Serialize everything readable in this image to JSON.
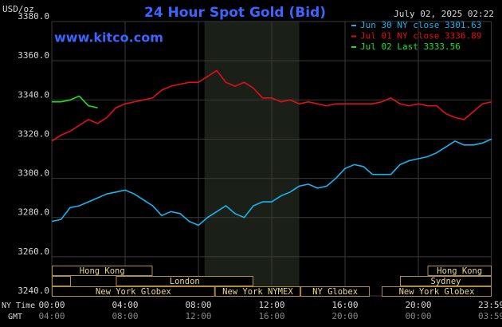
{
  "chart_data": {
    "type": "line",
    "title": "24 Hour Spot Gold (Bid)",
    "timestamp": "July 02, 2025 02:22",
    "source": "www.kitco.com",
    "y_label": "USD/oz",
    "x_label": "NY Time",
    "x2_label": "GMT",
    "x": [
      0,
      0.5,
      1,
      1.5,
      2,
      2.5,
      3,
      3.5,
      4,
      4.5,
      5,
      5.5,
      6,
      6.5,
      7,
      7.5,
      8,
      8.5,
      9,
      9.5,
      10,
      10.5,
      11,
      11.5,
      12,
      12.5,
      13,
      13.5,
      14,
      14.5,
      15,
      15.5,
      16,
      16.5,
      17,
      17.5,
      18,
      18.5,
      19,
      19.5,
      20,
      20.5,
      21,
      21.5,
      22,
      22.5,
      23,
      23.5,
      24
    ],
    "series": [
      {
        "name": "Jun 30 NY close 3301.63",
        "color": "#18b4f0",
        "values": [
          3278,
          3279,
          3285,
          3286,
          3288,
          3290,
          3292,
          3293,
          3294,
          3292,
          3289,
          3286,
          3281,
          3283,
          3282,
          3278,
          3276,
          3280,
          3283,
          3286,
          3282,
          3280,
          3286,
          3288,
          3288,
          3291,
          3293,
          3296,
          3297,
          3295,
          3296,
          3300,
          3305,
          3307,
          3306,
          3302,
          3302,
          3302,
          3307,
          3309,
          3310,
          3311,
          3313,
          3316,
          3319,
          3317,
          3317,
          3318,
          3320
        ]
      },
      {
        "name": "Jul 01 NY close 3336.89",
        "color": "#e01018",
        "values": [
          3319,
          3322,
          3324,
          3327,
          3330,
          3328,
          3331,
          3336,
          3338,
          3339,
          3340,
          3341,
          3345,
          3347,
          3348,
          3349,
          3349,
          3352,
          3355,
          3349,
          3347,
          3349,
          3346,
          3341,
          3341,
          3339,
          3340,
          3338,
          3339,
          3338,
          3337,
          3338,
          3338,
          3338,
          3338,
          3338,
          3339,
          3341,
          3338,
          3337,
          3338,
          3337,
          3337,
          3333,
          3331,
          3330,
          3334,
          3338,
          3339
        ]
      },
      {
        "name": "Jul 02 Last 3333.56",
        "color": "#20e020",
        "values": [
          3339,
          3339,
          3340,
          3342,
          3337,
          3336,
          null,
          null,
          null,
          null,
          null,
          null,
          null,
          null,
          null,
          null,
          null,
          null,
          null,
          null,
          null,
          null,
          null,
          null,
          null,
          null,
          null,
          null,
          null,
          null,
          null,
          null,
          null,
          null,
          null,
          null,
          null,
          null,
          null,
          null,
          null,
          null,
          null,
          null,
          null,
          null,
          null,
          null,
          null
        ]
      }
    ],
    "xlim": [
      0,
      24
    ],
    "ylim": [
      3240,
      3380
    ],
    "yticks": [
      {
        "value": 3240,
        "label": "3240.0"
      },
      {
        "value": 3260,
        "label": "3260.0"
      },
      {
        "value": 3280,
        "label": "3280.0"
      },
      {
        "value": 3300,
        "label": "3300.0"
      },
      {
        "value": 3320,
        "label": "3320.0"
      },
      {
        "value": 3340,
        "label": "3340.0"
      },
      {
        "value": 3360,
        "label": "3360.0"
      },
      {
        "value": 3380,
        "label": "3380.0"
      }
    ],
    "xticks": [
      {
        "value": 0,
        "label": "00:00"
      },
      {
        "value": 4,
        "label": "04:00"
      },
      {
        "value": 8,
        "label": "08:00"
      },
      {
        "value": 12,
        "label": "12:00"
      },
      {
        "value": 16,
        "label": "16:00"
      },
      {
        "value": 20,
        "label": "20:00"
      },
      {
        "value": 23.983,
        "label": "23:59"
      }
    ],
    "x2ticks": [
      {
        "value": 0,
        "label": "04:00"
      },
      {
        "value": 4,
        "label": "08:00"
      },
      {
        "value": 8,
        "label": "12:00"
      },
      {
        "value": 12,
        "label": "16:00"
      },
      {
        "value": 16,
        "label": "20:00"
      },
      {
        "value": 20,
        "label": "00:00"
      },
      {
        "value": 23.983,
        "label": "03:59"
      }
    ],
    "shaded_x": [
      8.33,
      13.5
    ],
    "sessions": [
      [
        {
          "label": "Hong Kong",
          "start": 0,
          "end": 5.5
        },
        {
          "label": "Hong Kong",
          "start": 20.5,
          "end": 24
        }
      ],
      [
        {
          "label": "London",
          "start": 3.5,
          "end": 11
        },
        {
          "label": "Sydney",
          "start": 19,
          "end": 24
        }
      ],
      [
        {
          "label": "New York Globex",
          "start": 0,
          "end": 8.9
        },
        {
          "label": "New York NYMEX",
          "start": 8.9,
          "end": 13.57
        },
        {
          "label": "NY Globex",
          "start": 13.57,
          "end": 17.35
        },
        {
          "label": "New York Globex",
          "start": 18,
          "end": 24
        }
      ]
    ],
    "grid": true
  }
}
